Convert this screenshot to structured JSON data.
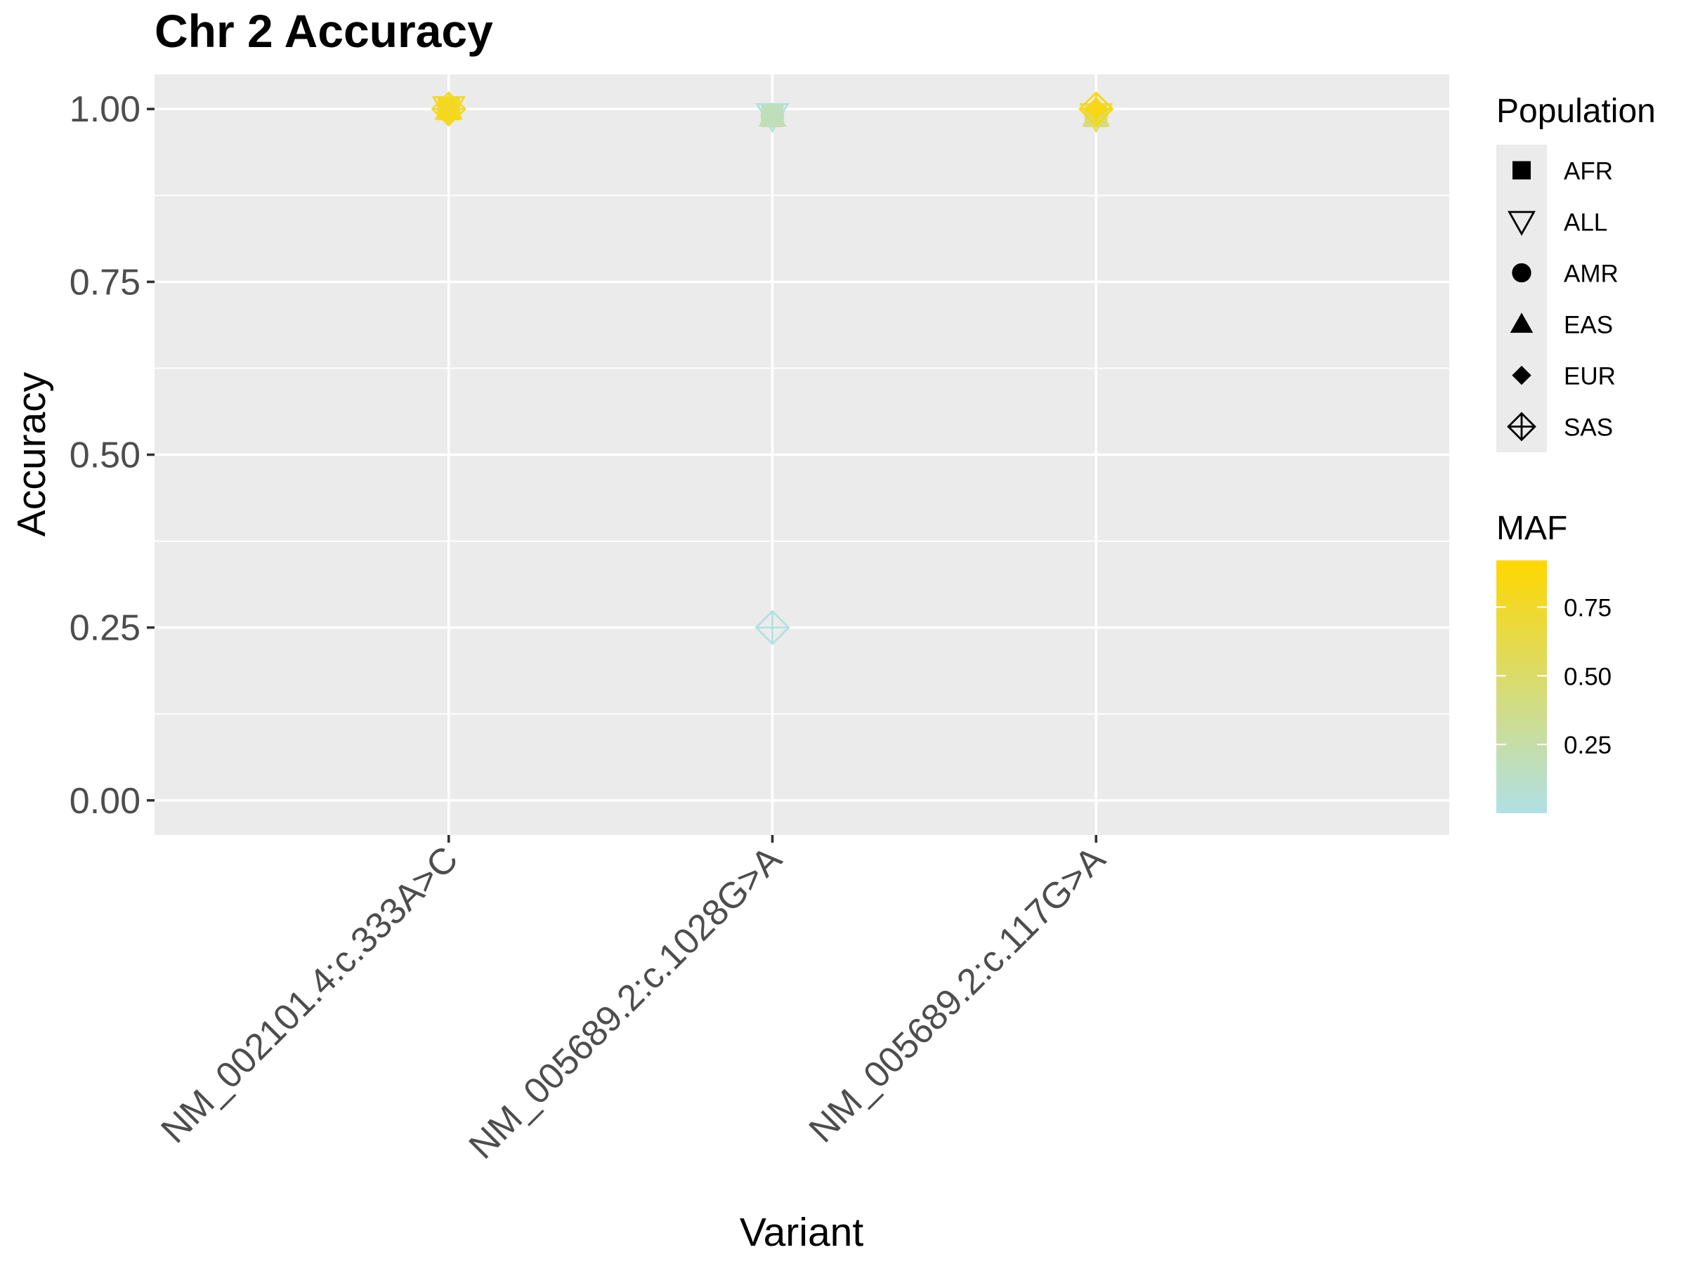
{
  "chart_data": {
    "type": "scatter",
    "title": "Chr 2 Accuracy",
    "xlabel": "Variant",
    "ylabel": "Accuracy",
    "categories": [
      "NM_002101.4:c.333A>C",
      "NM_005689.2:c.1028G>A",
      "NM_005689.2:c.117G>A"
    ],
    "ylim": [
      -0.05,
      1.05
    ],
    "yticks": [
      0.0,
      0.25,
      0.5,
      0.75,
      1.0
    ],
    "ytick_labels": [
      "0.00",
      "0.25",
      "0.50",
      "0.75",
      "1.00"
    ],
    "grid": true,
    "points": [
      {
        "category": "NM_002101.4:c.333A>C",
        "population": "AFR",
        "accuracy": 1.0,
        "maf": 0.75
      },
      {
        "category": "NM_002101.4:c.333A>C",
        "population": "ALL",
        "accuracy": 1.0,
        "maf": 0.8
      },
      {
        "category": "NM_002101.4:c.333A>C",
        "population": "AMR",
        "accuracy": 1.0,
        "maf": 0.78
      },
      {
        "category": "NM_002101.4:c.333A>C",
        "population": "EAS",
        "accuracy": 1.0,
        "maf": 0.85
      },
      {
        "category": "NM_002101.4:c.333A>C",
        "population": "EUR",
        "accuracy": 1.0,
        "maf": 0.8
      },
      {
        "category": "NM_002101.4:c.333A>C",
        "population": "SAS",
        "accuracy": 1.0,
        "maf": 0.75
      },
      {
        "category": "NM_005689.2:c.1028G>A",
        "population": "AFR",
        "accuracy": 0.99,
        "maf": 0.2
      },
      {
        "category": "NM_005689.2:c.1028G>A",
        "population": "ALL",
        "accuracy": 0.99,
        "maf": 0.05
      },
      {
        "category": "NM_005689.2:c.1028G>A",
        "population": "AMR",
        "accuracy": 0.99,
        "maf": 0.15
      },
      {
        "category": "NM_005689.2:c.1028G>A",
        "population": "EAS",
        "accuracy": 0.99,
        "maf": 0.2
      },
      {
        "category": "NM_005689.2:c.1028G>A",
        "population": "EUR",
        "accuracy": 0.99,
        "maf": 0.18
      },
      {
        "category": "NM_005689.2:c.1028G>A",
        "population": "SAS",
        "accuracy": 0.25,
        "maf": 0.02
      },
      {
        "category": "NM_005689.2:c.117G>A",
        "population": "AFR",
        "accuracy": 0.99,
        "maf": 0.45
      },
      {
        "category": "NM_005689.2:c.117G>A",
        "population": "ALL",
        "accuracy": 0.99,
        "maf": 0.55
      },
      {
        "category": "NM_005689.2:c.117G>A",
        "population": "AMR",
        "accuracy": 0.99,
        "maf": 0.5
      },
      {
        "category": "NM_005689.2:c.117G>A",
        "population": "EAS",
        "accuracy": 0.99,
        "maf": 0.45
      },
      {
        "category": "NM_005689.2:c.117G>A",
        "population": "EUR",
        "accuracy": 1.0,
        "maf": 0.8
      },
      {
        "category": "NM_005689.2:c.117G>A",
        "population": "SAS",
        "accuracy": 1.0,
        "maf": 0.9
      }
    ],
    "legend": {
      "shape_title": "Population",
      "shapes": [
        {
          "label": "AFR",
          "shape": "square"
        },
        {
          "label": "ALL",
          "shape": "triangle-down-open"
        },
        {
          "label": "AMR",
          "shape": "circle"
        },
        {
          "label": "EAS",
          "shape": "triangle-up"
        },
        {
          "label": "EUR",
          "shape": "diamond"
        },
        {
          "label": "SAS",
          "shape": "diamond-plus-open"
        }
      ],
      "color_title": "MAF",
      "color_ticks": [
        0.25,
        0.5,
        0.75
      ],
      "color_tick_labels": [
        "0.25",
        "0.50",
        "0.75"
      ],
      "color_range": [
        0.0,
        0.92
      ],
      "color_low": "#B0E0E6",
      "color_high": "#FFD700",
      "placement": "right"
    },
    "colors": {
      "panel_background": "#EBEBEB",
      "gridline": "#FFFFFF",
      "tick": "#333333",
      "tick_label": "#4D4D4D"
    }
  }
}
